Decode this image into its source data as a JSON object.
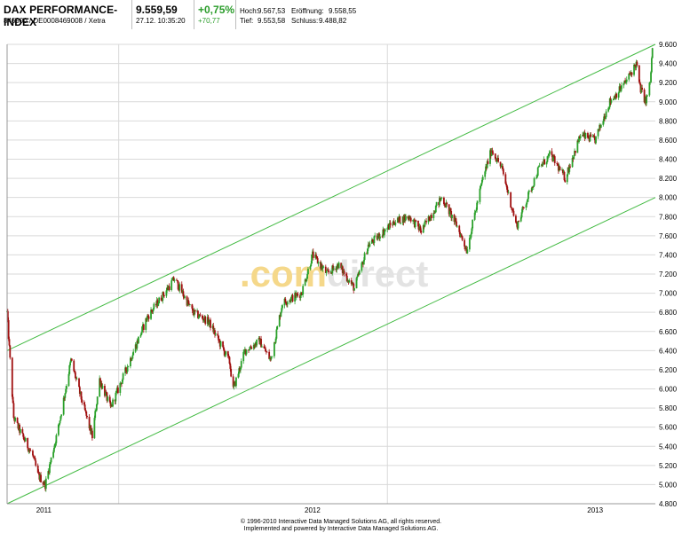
{
  "header": {
    "title": "DAX PERFORMANCE-INDEX",
    "identifiers": "846900 / DE0008469008 / Xetra",
    "price": "9.559,59",
    "timestamp": "27.12. 10:35:20",
    "change_pct": "+0,75%",
    "change_abs": "+70,77",
    "high_label": "Hoch:",
    "high_value": "9.567,53",
    "open_label": "Eröffnung:",
    "open_value": "9.558,55",
    "low_label": "Tief:",
    "low_value": "9.553,58",
    "close_label": "Schluss:",
    "close_value": "9.488,82"
  },
  "watermark": {
    "part1": ".com",
    "part2": "direct"
  },
  "footer": {
    "line1": "© 1996-2010 Interactive Data Managed Solutions AG, all rights reserved.",
    "line2": "Implemented and powered by Interactive Data Managed Solutions AG."
  },
  "colors": {
    "up": "#2aa02a",
    "down": "#a01010",
    "channel": "#44bb44",
    "grid": "#d9d9d9",
    "watermark": "#f5d88a",
    "watermark2": "#e3e3e3"
  },
  "chart_data": {
    "type": "candlestick",
    "title": "DAX PERFORMANCE-INDEX",
    "ylim": [
      4800,
      9600
    ],
    "yticks": [
      4800,
      5000,
      5200,
      5400,
      5600,
      5800,
      6000,
      6200,
      6400,
      6600,
      6800,
      7000,
      7200,
      7400,
      7600,
      7800,
      8000,
      8200,
      8400,
      8600,
      8800,
      9000,
      9200,
      9400,
      9600
    ],
    "ytick_labels": [
      "4.800",
      "5.000",
      "5.200",
      "5.400",
      "5.600",
      "5.800",
      "6.000",
      "6.200",
      "6.400",
      "6.600",
      "6.800",
      "7.000",
      "7.200",
      "7.400",
      "7.600",
      "7.800",
      "8.000",
      "8.200",
      "8.400",
      "8.600",
      "8.800",
      "9.000",
      "9.200",
      "9.400",
      "9.600"
    ],
    "xticks": [
      "2011",
      "2012",
      "2013"
    ],
    "grid": true,
    "price_path": [
      [
        "2011-08-01",
        6800
      ],
      [
        "2011-08-05",
        6300
      ],
      [
        "2011-08-10",
        5700
      ],
      [
        "2011-08-19",
        5550
      ],
      [
        "2011-09-05",
        5300
      ],
      [
        "2011-09-12",
        5100
      ],
      [
        "2011-09-22",
        5000
      ],
      [
        "2011-10-10",
        5600
      ],
      [
        "2011-10-27",
        6300
      ],
      [
        "2011-11-10",
        5900
      ],
      [
        "2011-11-25",
        5500
      ],
      [
        "2011-12-05",
        6100
      ],
      [
        "2011-12-20",
        5800
      ],
      [
        "2012-01-10",
        6200
      ],
      [
        "2012-02-08",
        6750
      ],
      [
        "2012-03-16",
        7150
      ],
      [
        "2012-04-10",
        6800
      ],
      [
        "2012-05-02",
        6700
      ],
      [
        "2012-05-30",
        6280
      ],
      [
        "2012-06-04",
        5990
      ],
      [
        "2012-06-20",
        6400
      ],
      [
        "2012-07-10",
        6500
      ],
      [
        "2012-07-25",
        6300
      ],
      [
        "2012-08-10",
        6900
      ],
      [
        "2012-09-05",
        7000
      ],
      [
        "2012-09-20",
        7400
      ],
      [
        "2012-10-10",
        7200
      ],
      [
        "2012-10-25",
        7300
      ],
      [
        "2012-11-16",
        7050
      ],
      [
        "2012-12-05",
        7500
      ],
      [
        "2013-01-10",
        7750
      ],
      [
        "2013-01-30",
        7800
      ],
      [
        "2013-02-15",
        7650
      ],
      [
        "2013-03-15",
        8000
      ],
      [
        "2013-04-05",
        7700
      ],
      [
        "2013-04-18",
        7450
      ],
      [
        "2013-05-10",
        8200
      ],
      [
        "2013-05-22",
        8500
      ],
      [
        "2013-06-05",
        8300
      ],
      [
        "2013-06-25",
        7700
      ],
      [
        "2013-07-10",
        8000
      ],
      [
        "2013-07-25",
        8300
      ],
      [
        "2013-08-10",
        8450
      ],
      [
        "2013-08-30",
        8200
      ],
      [
        "2013-09-20",
        8650
      ],
      [
        "2013-10-10",
        8600
      ],
      [
        "2013-10-30",
        9000
      ],
      [
        "2013-11-20",
        9200
      ],
      [
        "2013-12-05",
        9400
      ],
      [
        "2013-12-10",
        9150
      ],
      [
        "2013-12-18",
        9000
      ],
      [
        "2013-12-24",
        9200
      ],
      [
        "2013-12-27",
        9560
      ]
    ],
    "channel": {
      "upper": [
        [
          "2011-08-01",
          6400
        ],
        [
          "2013-12-31",
          9600
        ]
      ],
      "lower": [
        [
          "2011-08-01",
          4800
        ],
        [
          "2013-12-31",
          8000
        ]
      ]
    }
  }
}
